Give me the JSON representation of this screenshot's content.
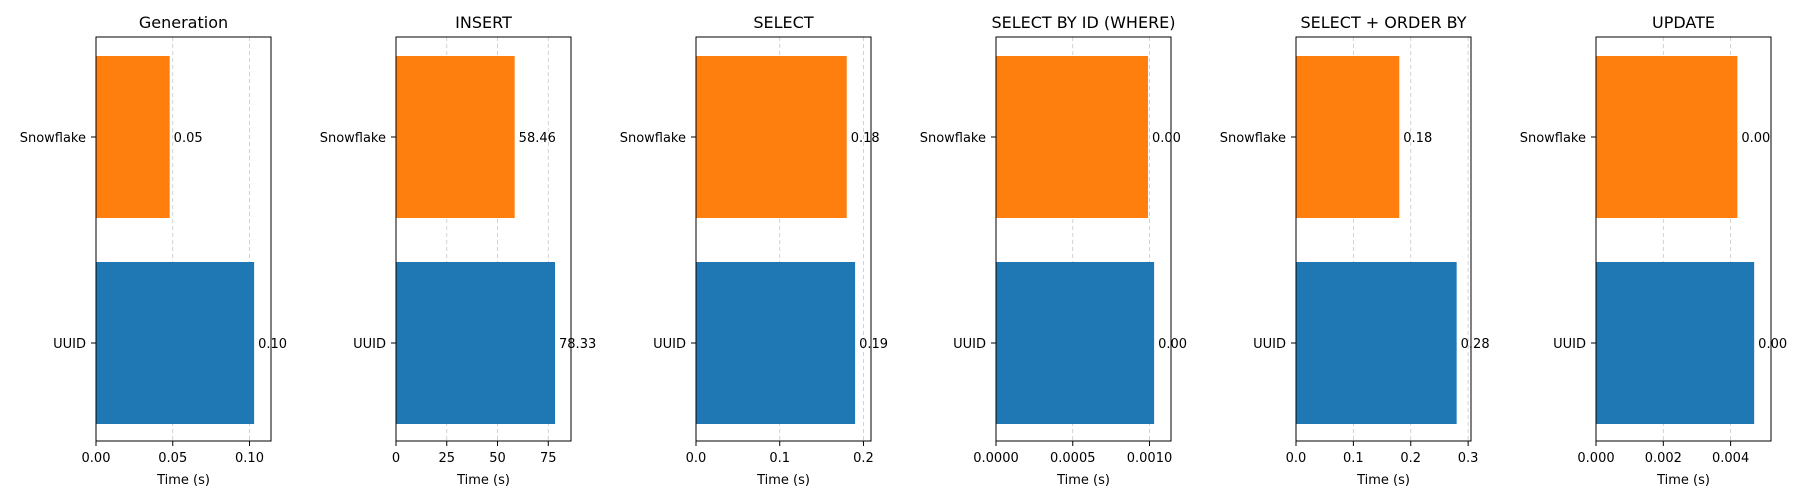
{
  "colors": {
    "UUID": "#1f77b4",
    "Snowflake": "#ff7f0e"
  },
  "chart_data": [
    {
      "type": "bar",
      "orientation": "horizontal",
      "title": "Generation",
      "categories": [
        "UUID",
        "Snowflake"
      ],
      "values": [
        0.103,
        0.048
      ],
      "value_labels": [
        "0.10",
        "0.05"
      ],
      "xlabel": "Time (s)",
      "xlim": [
        0,
        0.114
      ],
      "xticks": [
        0,
        0.05,
        0.1
      ],
      "xtick_labels": [
        "0.00",
        "0.05",
        "0.10"
      ],
      "grid": "x-dashed"
    },
    {
      "type": "bar",
      "orientation": "horizontal",
      "title": "INSERT",
      "categories": [
        "UUID",
        "Snowflake"
      ],
      "values": [
        78.33,
        58.46
      ],
      "value_labels": [
        "78.33",
        "58.46"
      ],
      "xlabel": "Time (s)",
      "xlim": [
        0,
        86.2
      ],
      "xticks": [
        0,
        25,
        50,
        75
      ],
      "xtick_labels": [
        "0",
        "25",
        "50",
        "75"
      ],
      "grid": "x-dashed"
    },
    {
      "type": "bar",
      "orientation": "horizontal",
      "title": "SELECT",
      "categories": [
        "UUID",
        "Snowflake"
      ],
      "values": [
        0.19,
        0.18
      ],
      "value_labels": [
        "0.19",
        "0.18"
      ],
      "xlabel": "Time (s)",
      "xlim": [
        0,
        0.209
      ],
      "xticks": [
        0,
        0.1,
        0.2
      ],
      "xtick_labels": [
        "0.0",
        "0.1",
        "0.2"
      ],
      "grid": "x-dashed"
    },
    {
      "type": "bar",
      "orientation": "horizontal",
      "title": "SELECT BY ID (WHERE)",
      "categories": [
        "UUID",
        "Snowflake"
      ],
      "values": [
        0.00103,
        0.00099
      ],
      "value_labels": [
        "0.00",
        "0.00"
      ],
      "xlabel": "Time (s)",
      "xlim": [
        0,
        0.00114
      ],
      "xticks": [
        0,
        0.0005,
        0.001
      ],
      "xtick_labels": [
        "0.0000",
        "0.0005",
        "0.0010"
      ],
      "grid": "x-dashed"
    },
    {
      "type": "bar",
      "orientation": "horizontal",
      "title": "SELECT + ORDER BY",
      "categories": [
        "UUID",
        "Snowflake"
      ],
      "values": [
        0.28,
        0.18
      ],
      "value_labels": [
        "0.28",
        "0.18"
      ],
      "xlabel": "Time (s)",
      "xlim": [
        0,
        0.305
      ],
      "xticks": [
        0,
        0.1,
        0.2,
        0.3
      ],
      "xtick_labels": [
        "0.0",
        "0.1",
        "0.2",
        "0.3"
      ],
      "grid": "x-dashed"
    },
    {
      "type": "bar",
      "orientation": "horizontal",
      "title": "UPDATE",
      "categories": [
        "UUID",
        "Snowflake"
      ],
      "values": [
        0.0047,
        0.0042
      ],
      "value_labels": [
        "0.00",
        "0.00"
      ],
      "xlabel": "Time (s)",
      "xlim": [
        0,
        0.0052
      ],
      "xticks": [
        0,
        0.002,
        0.004
      ],
      "xtick_labels": [
        "0.000",
        "0.002",
        "0.004"
      ],
      "grid": "x-dashed"
    }
  ]
}
